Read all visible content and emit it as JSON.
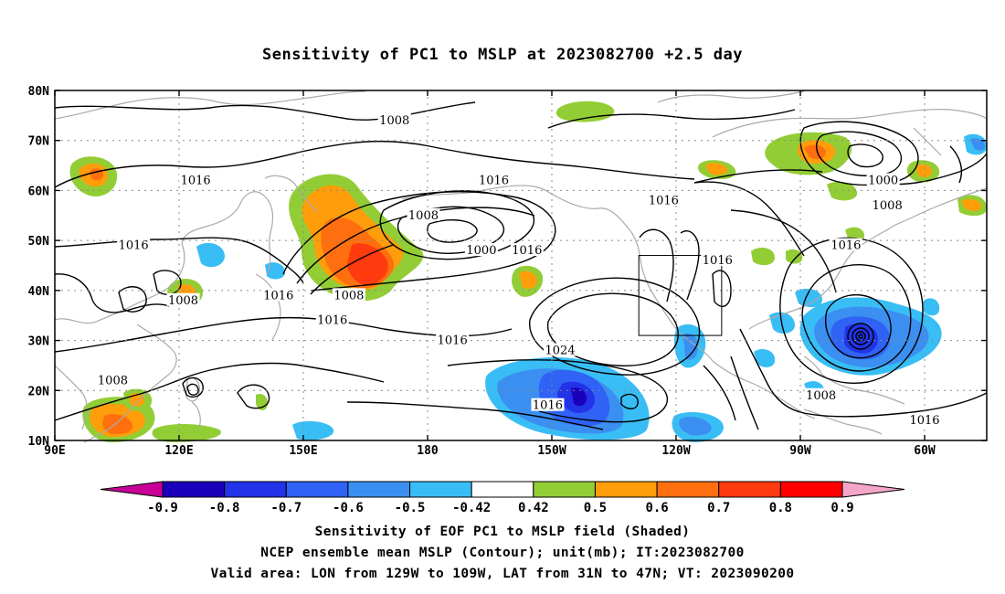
{
  "title": "Sensitivity of PC1 to MSLP at 2023082700 +2.5 day",
  "map": {
    "lat_ticks": [
      "80N",
      "70N",
      "60N",
      "50N",
      "40N",
      "30N",
      "20N",
      "10N"
    ],
    "lon_ticks": [
      "90E",
      "120E",
      "150E",
      "180",
      "150W",
      "120W",
      "90W",
      "60W"
    ],
    "lon_range": [
      90,
      315
    ],
    "lat_range": [
      10,
      80
    ],
    "grid": "dotted",
    "coastline_color": "#aaaaaa",
    "valid_area_box": {
      "lon_min": -129,
      "lon_max": -109,
      "lat_min": 31,
      "lat_max": 47
    },
    "contour_labels": [
      {
        "text": "1008",
        "lon": 172,
        "lat": 74
      },
      {
        "text": "1016",
        "lon": 124,
        "lat": 62
      },
      {
        "text": "1016",
        "lon": 196,
        "lat": 62
      },
      {
        "text": "1016",
        "lon": 237,
        "lat": 58
      },
      {
        "text": "1000",
        "lon": 290,
        "lat": 62
      },
      {
        "text": "1008",
        "lon": 291,
        "lat": 57
      },
      {
        "text": "1008",
        "lon": 179,
        "lat": 55
      },
      {
        "text": "1000",
        "lon": 193,
        "lat": 48
      },
      {
        "text": "1016",
        "lon": 204,
        "lat": 48
      },
      {
        "text": "1016",
        "lon": 250,
        "lat": 46
      },
      {
        "text": "1016",
        "lon": 281,
        "lat": 49
      },
      {
        "text": "1016",
        "lon": 109,
        "lat": 49
      },
      {
        "text": "1016",
        "lon": 144,
        "lat": 39
      },
      {
        "text": "1008",
        "lon": 161,
        "lat": 39
      },
      {
        "text": "1008",
        "lon": 121,
        "lat": 38
      },
      {
        "text": "1016",
        "lon": 157,
        "lat": 34
      },
      {
        "text": "1016",
        "lon": 186,
        "lat": 30
      },
      {
        "text": "1024",
        "lon": 212,
        "lat": 28
      },
      {
        "text": "1008",
        "lon": 104,
        "lat": 22
      },
      {
        "text": "1016",
        "lon": 209,
        "lat": 17
      },
      {
        "text": "1008",
        "lon": 275,
        "lat": 19
      },
      {
        "text": "1016",
        "lon": 300,
        "lat": 14
      }
    ]
  },
  "colorbar": {
    "labels": [
      "-0.9",
      "-0.8",
      "-0.7",
      "-0.6",
      "-0.5",
      "-0.42",
      "0.42",
      "0.5",
      "0.6",
      "0.7",
      "0.8",
      "0.9"
    ],
    "colors": [
      "#1a00bb",
      "#2233e8",
      "#2f62f5",
      "#3b8ff0",
      "#39bdf5",
      "#ffffff",
      "#93cd36",
      "#ff9d0a",
      "#ff6f0f",
      "#ff3b0f",
      "#ff0000"
    ],
    "low_end_color": "#c80096",
    "high_end_color": "#f5a6c8"
  },
  "caption": {
    "line1": "Sensitivity of EOF PC1 to MSLP field (Shaded)",
    "line2": "NCEP ensemble mean MSLP (Contour); unit(mb); IT:2023082700",
    "line3": "Valid area: LON from 129W to 109W, LAT from 31N to 47N; VT: 2023090200"
  }
}
